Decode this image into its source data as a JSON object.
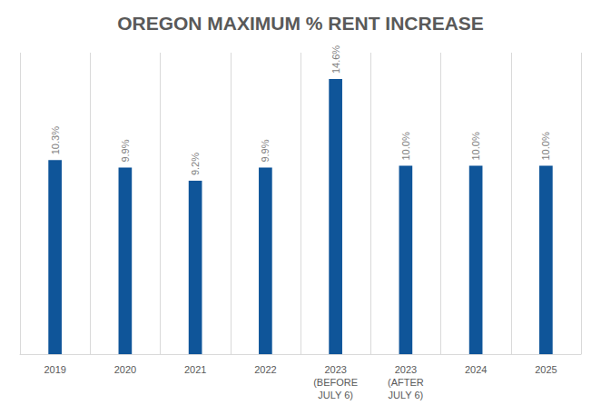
{
  "chart_data": {
    "type": "bar",
    "title": "OREGON MAXIMUM % RENT INCREASE",
    "categories": [
      "2019",
      "2020",
      "2021",
      "2022",
      "2023\n(BEFORE\nJULY 6)",
      "2023\n(AFTER\nJULY 6)",
      "2024",
      "2025"
    ],
    "values": [
      10.3,
      9.9,
      9.2,
      9.9,
      14.6,
      10.0,
      10.0,
      10.0
    ],
    "value_labels": [
      "10.3%",
      "9.9%",
      "9.2%",
      "9.9%",
      "14.6%",
      "10.0%",
      "10.0%",
      "10.0%"
    ],
    "color": "#0f5599",
    "ylim": [
      0,
      16
    ],
    "grid": true,
    "data_labels": true,
    "tick_labels": "x"
  }
}
